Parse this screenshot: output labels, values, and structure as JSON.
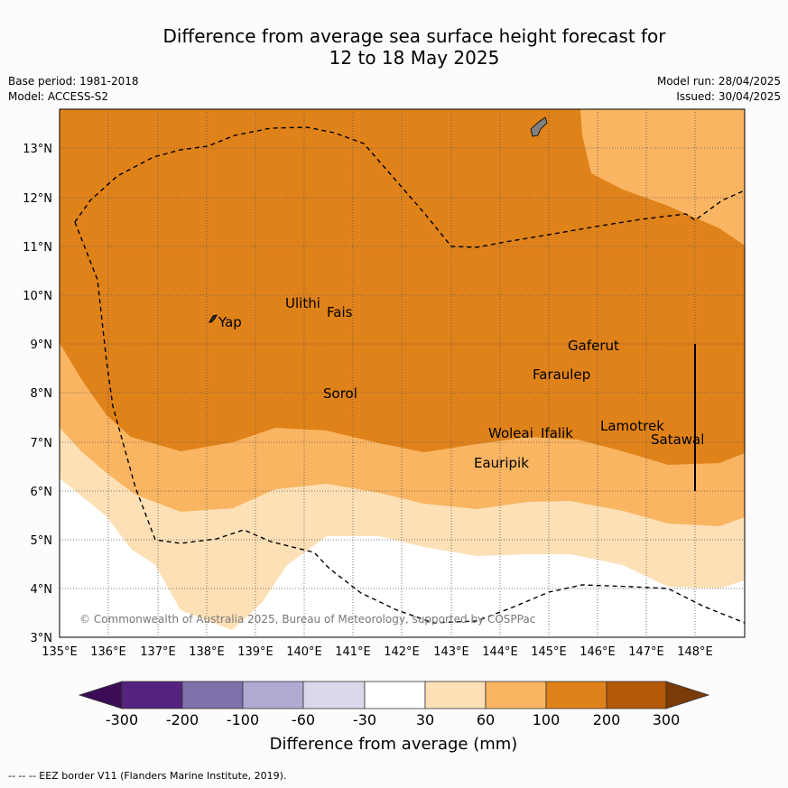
{
  "title_line1": "Difference from average sea surface height forecast for",
  "title_line2": "12 to 18 May 2025",
  "base_period": "Base period: 1981-2018",
  "model": "Model: ACCESS-S2",
  "model_run": "Model run: 28/04/2025",
  "issued": "Issued: 30/04/2025",
  "copyright": "© Commonwealth of Australia 2025, Bureau of Meteorology, supported by COSPPac",
  "footnote": "--  --  -- EEZ border V11 (Flanders Marine Institute, 2019).",
  "colorbar": {
    "label": "Difference from average (mm)",
    "ticks": [
      "-300",
      "-200",
      "-100",
      "-60",
      "-30",
      "30",
      "60",
      "100",
      "200",
      "300"
    ],
    "colors": [
      "#3b0d57",
      "#55237f",
      "#7e70ab",
      "#b0a9d2",
      "#d9d9ea",
      "#ffffff",
      "#fee0b6",
      "#f9b562",
      "#e0821a",
      "#b35806",
      "#7a3b07"
    ]
  },
  "map": {
    "lon_labels": [
      "135°E",
      "136°E",
      "137°E",
      "138°E",
      "139°E",
      "140°E",
      "141°E",
      "142°E",
      "143°E",
      "144°E",
      "145°E",
      "146°E",
      "147°E",
      "148°E"
    ],
    "lat_labels": [
      "3°N",
      "4°N",
      "5°N",
      "6°N",
      "7°N",
      "8°N",
      "9°N",
      "10°N",
      "11°N",
      "12°N",
      "13°N"
    ],
    "places": [
      {
        "name": "Yap"
      },
      {
        "name": "Ulithi"
      },
      {
        "name": "Fais"
      },
      {
        "name": "Gaferut"
      },
      {
        "name": "Faraulep"
      },
      {
        "name": "Sorol"
      },
      {
        "name": "Lamotrek"
      },
      {
        "name": "Woleai"
      },
      {
        "name": "Ifalik"
      },
      {
        "name": "Satawal"
      },
      {
        "name": "Eauripik"
      }
    ],
    "zone_colors": {
      "white": "#ffffff",
      "z30_60": "#fee0b6",
      "z60_100": "#f9b562",
      "z100_200": "#e0821a"
    }
  }
}
